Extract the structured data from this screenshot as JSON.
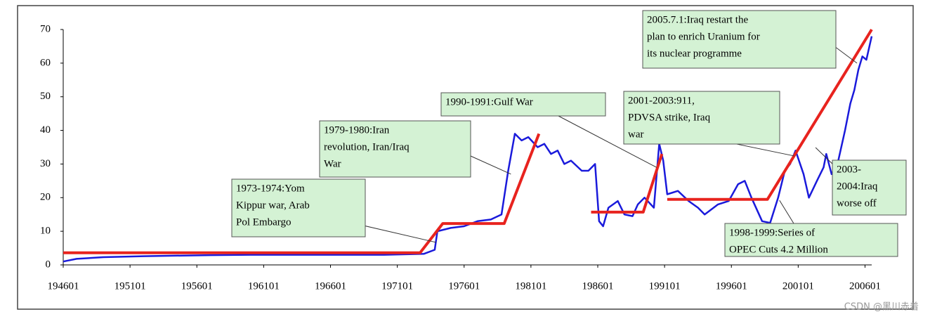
{
  "chart_data": {
    "type": "line",
    "xlim": [
      1946,
      2006.5
    ],
    "xticks": [
      {
        "value": 1946,
        "label": "194601"
      },
      {
        "value": 1951,
        "label": "195101"
      },
      {
        "value": 1956,
        "label": "195601"
      },
      {
        "value": 1961,
        "label": "196101"
      },
      {
        "value": 1966,
        "label": "196601"
      },
      {
        "value": 1971,
        "label": "197101"
      },
      {
        "value": 1976,
        "label": "197601"
      },
      {
        "value": 1981,
        "label": "198101"
      },
      {
        "value": 1986,
        "label": "198601"
      },
      {
        "value": 1991,
        "label": "199101"
      },
      {
        "value": 1996,
        "label": "199601"
      },
      {
        "value": 2001,
        "label": "200101"
      },
      {
        "value": 2006,
        "label": "200601"
      }
    ],
    "ylim": [
      0,
      70
    ],
    "yticks": [
      0,
      10,
      20,
      30,
      40,
      50,
      60,
      70
    ],
    "series": [
      {
        "color": "#1a1adb",
        "width": 2.5,
        "x": [
          1946,
          1947,
          1949,
          1952,
          1957,
          1960,
          1965,
          1970,
          1973,
          1973.8,
          1974,
          1975,
          1976,
          1977,
          1978,
          1978.8,
          1979.3,
          1979.8,
          1980.3,
          1980.8,
          1981.5,
          1982,
          1982.5,
          1983,
          1983.5,
          1984,
          1984.8,
          1985.3,
          1985.8,
          1986.1,
          1986.4,
          1986.8,
          1987.5,
          1988,
          1988.6,
          1989,
          1989.5,
          1990.2,
          1990.6,
          1990.9,
          1991.2,
          1992,
          1992.8,
          1993.5,
          1994,
          1995,
          1995.8,
          1996.5,
          1997,
          1997.5,
          1998.3,
          1998.9,
          1999.5,
          2000,
          2000.4,
          2000.8,
          2001.4,
          2001.8,
          2002.4,
          2002.9,
          2003.1,
          2003.5,
          2004,
          2004.5,
          2004.9,
          2005.2,
          2005.5,
          2005.8,
          2006.1,
          2006.5
        ],
        "values": [
          1.0,
          1.8,
          2.3,
          2.6,
          2.9,
          3.0,
          3.0,
          3.0,
          3.3,
          4.5,
          10,
          11,
          11.5,
          13,
          13.5,
          15,
          28,
          39,
          37,
          38,
          35,
          36,
          33,
          34,
          30,
          31,
          28,
          28,
          30,
          13,
          11.5,
          17,
          19,
          15,
          14.5,
          18,
          20,
          17,
          36,
          31,
          21,
          22,
          19,
          17,
          15,
          18,
          19,
          24,
          25,
          20,
          13,
          12.5,
          20,
          28,
          30,
          34,
          27,
          20,
          25,
          29,
          33,
          27,
          31,
          40,
          48,
          52,
          58,
          62,
          61,
          68
        ]
      },
      {
        "color": "#e8231e",
        "width": 4,
        "x": [
          1946,
          1972.7,
          1974.4,
          1979.0,
          1981.6,
          1983,
          1985.5,
          1989.4,
          1990.8,
          1991,
          1991.2,
          1998.7,
          2006.5
        ],
        "values": [
          3.6,
          3.6,
          12.3,
          12.3,
          39,
          null,
          15.7,
          15.7,
          33,
          null,
          19.5,
          19.5,
          70
        ]
      }
    ],
    "annotations": [
      {
        "lines": [
          "1973-1974:Yom",
          "Kippur war, Arab",
          "Pol Embargo"
        ],
        "x": 1973.9,
        "y": 6.7
      },
      {
        "lines": [
          "1979-1980:Iran",
          "revolution, Iran/Iraq",
          "War"
        ],
        "x": 1979.5,
        "y": 27
      },
      {
        "lines": [
          "1990-1991:Gulf War"
        ],
        "x": 1990.4,
        "y": 29
      },
      {
        "lines": [
          "2001-2003:911,",
          "PDVSA strike, Iraq",
          "war"
        ],
        "x": 2000.7,
        "y": 32.4
      },
      {
        "lines": [
          "2005.7.1:Iraq restart the",
          "plan to enrich Uranium for",
          "its nuclear programme"
        ],
        "x": 2005.4,
        "y": 60
      },
      {
        "lines": [
          "2003-",
          "2004:Iraq",
          "worse off"
        ],
        "x": 2002.3,
        "y": 34.9
      },
      {
        "lines": [
          "1998-1999:Series of",
          "OPEC Cuts 4.2 Million"
        ],
        "x": 1999.6,
        "y": 19.2
      }
    ],
    "watermark": "CSDN @黑川赤着"
  }
}
